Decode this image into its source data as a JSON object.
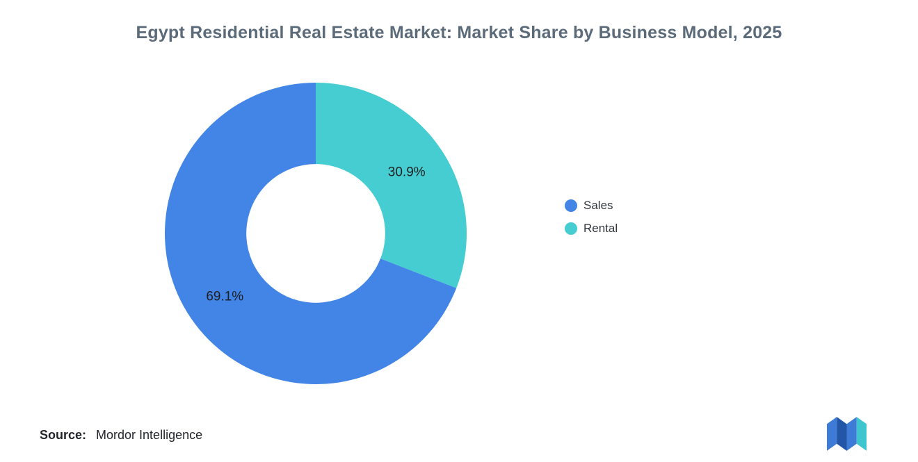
{
  "title": "Egypt Residential Real Estate Market: Market Share by Business Model, 2025",
  "source": {
    "label": "Source:",
    "value": "Mordor Intelligence"
  },
  "chart_data": {
    "type": "pie",
    "subtype": "donut",
    "title": "Egypt Residential Real Estate Market: Market Share by Business Model, 2025",
    "categories": [
      "Sales",
      "Rental"
    ],
    "values": [
      69.1,
      30.9
    ],
    "labels": [
      "69.1%",
      "30.9%"
    ],
    "colors": [
      "#4285E6",
      "#45CDD2"
    ],
    "legend_position": "right",
    "start_angle_deg": -90,
    "direction": "counterclockwise",
    "inner_radius_ratio": 0.46
  },
  "colors": {
    "background": "#FFFFFF",
    "title_text": "#5C6B7A",
    "slice_label_text": "#1F1F1F",
    "legend_text": "#33393F",
    "source_text": "#22262A",
    "logo_blue": "#3E7BD6",
    "logo_dark_blue": "#2456A8",
    "logo_teal": "#3FC5CE"
  }
}
